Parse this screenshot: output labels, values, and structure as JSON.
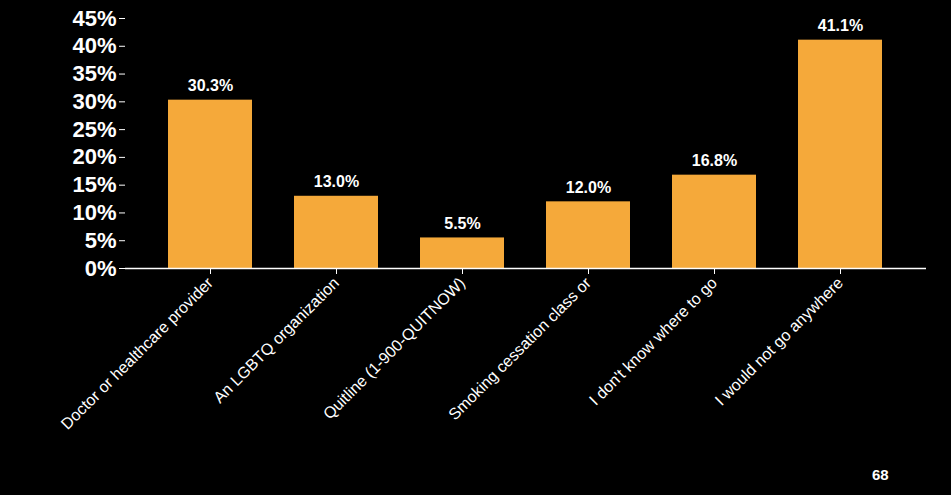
{
  "chart_data": {
    "type": "bar",
    "categories": [
      "Doctor or healthcare provider",
      "An LGBTQ organization",
      "Quitline (1-900-QUITNOW)",
      "Smoking cessation class or",
      "I don't know where to go",
      "I would not go anywhere"
    ],
    "values": [
      30.3,
      13.0,
      5.5,
      12.0,
      16.8,
      41.1
    ],
    "value_labels": [
      "30.3%",
      "13.0%",
      "5.5%",
      "12.0%",
      "16.8%",
      "41.1%"
    ],
    "data_labels": true,
    "color": "#f5a93a",
    "ylim": [
      0,
      45
    ],
    "yticks": [
      {
        "value": 0,
        "label": "0%"
      },
      {
        "value": 5,
        "label": "5%"
      },
      {
        "value": 10,
        "label": "10%"
      },
      {
        "value": 15,
        "label": "15%"
      },
      {
        "value": 20,
        "label": "20%"
      },
      {
        "value": 25,
        "label": "25%"
      },
      {
        "value": 30,
        "label": "30%"
      },
      {
        "value": 35,
        "label": "35%"
      },
      {
        "value": 40,
        "label": "40%"
      },
      {
        "value": 45,
        "label": "45%"
      }
    ],
    "grid": false,
    "annotations": [
      "68"
    ]
  }
}
